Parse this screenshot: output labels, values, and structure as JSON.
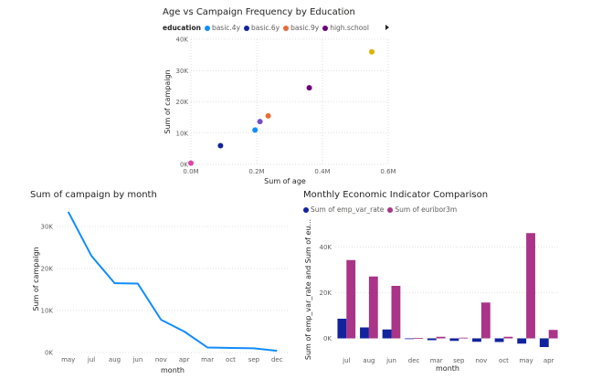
{
  "chart_data": [
    {
      "type": "scatter",
      "title": "Age vs Campaign Frequency by Education",
      "xlabel": "Sum of age",
      "ylabel": "Sum of campaign",
      "legend_title": "education",
      "legend_position": "top-left",
      "xlim": [
        0,
        600000
      ],
      "ylim": [
        0,
        40000
      ],
      "x_ticks": [
        0,
        200000,
        400000,
        600000
      ],
      "x_tick_labels": [
        "0.0M",
        "0.2M",
        "0.4M",
        "0.6M"
      ],
      "y_ticks": [
        0,
        10000,
        20000,
        30000,
        40000
      ],
      "y_tick_labels": [
        "0K",
        "10K",
        "20K",
        "30K",
        "40K"
      ],
      "grid": true,
      "series": [
        {
          "name": "basic.4y",
          "color": "#118DFF",
          "points": [
            [
              195000,
              11000
            ]
          ]
        },
        {
          "name": "basic.6y",
          "color": "#12239E",
          "points": [
            [
              90000,
              6000
            ]
          ]
        },
        {
          "name": "basic.9y",
          "color": "#E66C37",
          "points": [
            [
              235000,
              15500
            ]
          ]
        },
        {
          "name": "high.school",
          "color": "#6B007B",
          "points": [
            [
              360000,
              24500
            ]
          ]
        },
        {
          "name": "",
          "color": "#E044A7",
          "points": [
            [
              0,
              400
            ]
          ]
        },
        {
          "name": "",
          "color": "#744EC2",
          "points": [
            [
              210000,
              13700
            ]
          ]
        },
        {
          "name": "",
          "color": "#D9B300",
          "points": [
            [
              550000,
              36000
            ]
          ]
        }
      ]
    },
    {
      "type": "line",
      "title": "Sum of campaign by month",
      "xlabel": "month",
      "ylabel": "Sum of campaign",
      "ylim": [
        0,
        35000
      ],
      "y_ticks": [
        0,
        10000,
        20000,
        30000
      ],
      "y_tick_labels": [
        "0K",
        "10K",
        "20K",
        "30K"
      ],
      "grid": true,
      "categories": [
        "may",
        "jul",
        "aug",
        "jun",
        "nov",
        "apr",
        "mar",
        "oct",
        "sep",
        "dec"
      ],
      "series": [
        {
          "name": "",
          "color": "#118DFF",
          "values": [
            33500,
            23000,
            16500,
            16400,
            7800,
            5000,
            1200,
            1100,
            1000,
            400
          ]
        }
      ]
    },
    {
      "type": "bar",
      "title": "Monthly Economic Indicator Comparison",
      "xlabel": "month",
      "ylabel": "Sum of emp_var_rate and Sum of eu...",
      "legend_position": "top-left",
      "ylim": [
        -5000,
        51000
      ],
      "y_ticks": [
        0,
        20000,
        40000
      ],
      "y_tick_labels": [
        "0K",
        "20K",
        "40K"
      ],
      "grid": true,
      "categories": [
        "jul",
        "aug",
        "jun",
        "dec",
        "mar",
        "sep",
        "nov",
        "oct",
        "may",
        "apr"
      ],
      "series": [
        {
          "name": "Sum of emp_var_rate",
          "color": "#12239E",
          "values": [
            8600,
            4800,
            3900,
            -300,
            -800,
            -1100,
            -1500,
            -1600,
            -2300,
            -3800
          ]
        },
        {
          "name": "Sum of euribor3m",
          "color": "#A93488",
          "values": [
            34300,
            27100,
            23000,
            200,
            700,
            300,
            15700,
            700,
            46100,
            3700
          ]
        }
      ]
    }
  ]
}
